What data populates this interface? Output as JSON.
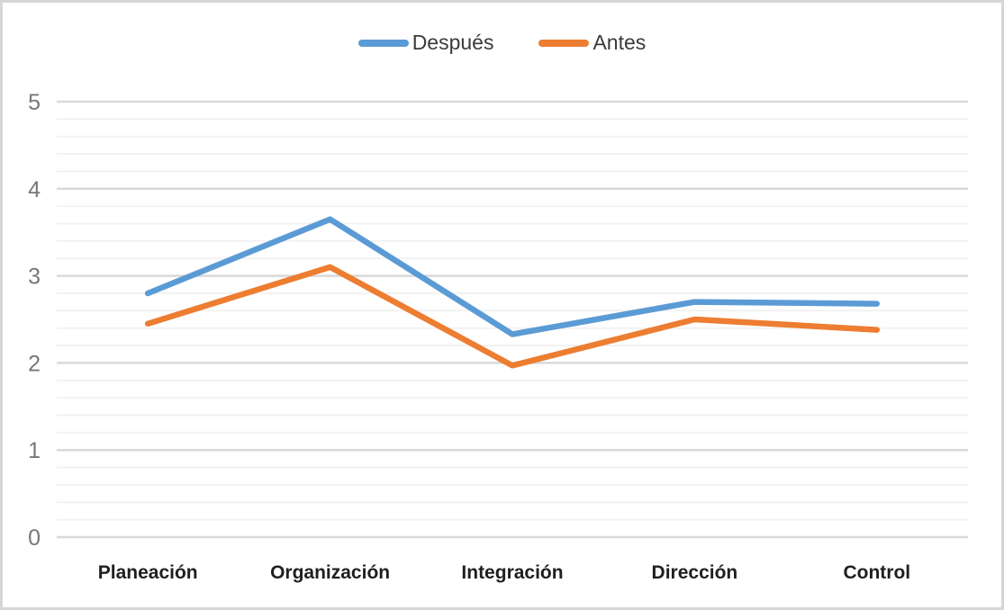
{
  "chart": {
    "background_color": "#ffffff",
    "border_color": "#d6d6d6"
  },
  "chart_data": {
    "type": "line",
    "title": "",
    "xlabel": "",
    "ylabel": "",
    "categories": [
      "Planeación",
      "Organización",
      "Integración",
      "Dirección",
      "Control"
    ],
    "series": [
      {
        "name": "Después",
        "color": "#5B9BD5",
        "values": [
          2.8,
          3.65,
          2.33,
          2.7,
          2.68
        ]
      },
      {
        "name": "Antes",
        "color": "#ED7D31",
        "values": [
          2.45,
          3.1,
          1.97,
          2.5,
          2.38
        ]
      }
    ],
    "ylim": [
      0,
      5
    ],
    "y_major_ticks": [
      0,
      1,
      2,
      3,
      4,
      5
    ],
    "y_minor_interval": 0.2,
    "grid": true,
    "legend_position": "top",
    "major_grid_color": "#d9d9d9",
    "minor_grid_color": "#f2f2f2",
    "axis_label_color": "#777777",
    "category_label_color": "#1f1f1f",
    "line_width": 6.5
  }
}
